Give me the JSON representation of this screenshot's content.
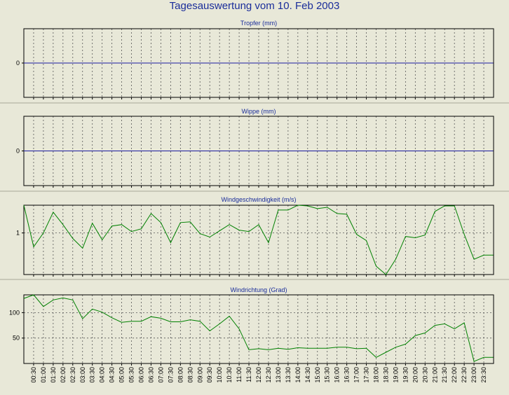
{
  "page_title": "Tagesauswertung vom 10. Feb 2003",
  "x_ticks": [
    "00:30",
    "01:00",
    "01:30",
    "02:00",
    "02:30",
    "03:00",
    "03:30",
    "04:00",
    "04:30",
    "05:00",
    "05:30",
    "06:00",
    "06:30",
    "07:00",
    "07:30",
    "08:00",
    "08:30",
    "09:00",
    "09:30",
    "10:00",
    "10:30",
    "11:00",
    "11:30",
    "12:00",
    "12:30",
    "13:00",
    "13:30",
    "14:00",
    "14:30",
    "15:00",
    "15:30",
    "16:00",
    "16:30",
    "17:00",
    "17:30",
    "18:00",
    "18:30",
    "19:00",
    "19:30",
    "20:00",
    "20:30",
    "21:00",
    "21:30",
    "22:00",
    "22:30",
    "23:00",
    "23:30"
  ],
  "chart_data": [
    {
      "type": "line",
      "title": "Tropfer (mm)",
      "x": [
        "00:00",
        "23:59"
      ],
      "ylim": [
        -1,
        1
      ],
      "yticks": [
        0
      ],
      "grid": true,
      "series": [
        {
          "color": "#1a1aa0",
          "values": [
            0,
            0
          ]
        }
      ]
    },
    {
      "type": "line",
      "title": "Wippe (mm)",
      "x": [
        "00:00",
        "23:59"
      ],
      "ylim": [
        -1,
        1
      ],
      "yticks": [
        0
      ],
      "grid": true,
      "series": [
        {
          "color": "#1a1aa0",
          "values": [
            0,
            0
          ]
        }
      ]
    },
    {
      "type": "line",
      "title": "Windgeschwindigkeit (m/s)",
      "x": [
        "00:00",
        "00:30",
        "01:00",
        "01:30",
        "02:00",
        "02:30",
        "03:00",
        "03:30",
        "04:00",
        "04:30",
        "05:00",
        "05:30",
        "06:00",
        "06:30",
        "07:00",
        "07:30",
        "08:00",
        "08:30",
        "09:00",
        "09:30",
        "10:00",
        "10:30",
        "11:00",
        "11:30",
        "12:00",
        "12:30",
        "13:00",
        "13:30",
        "14:00",
        "14:30",
        "15:00",
        "15:30",
        "16:00",
        "16:30",
        "17:00",
        "17:30",
        "18:00",
        "18:30",
        "19:00",
        "19:30",
        "20:00",
        "20:30",
        "21:00",
        "21:30",
        "22:00",
        "22:30",
        "23:00",
        "23:30",
        "23:59"
      ],
      "ylim": [
        0.4,
        1.4
      ],
      "yticks": [
        1
      ],
      "grid": true,
      "series": [
        {
          "color": "#008000",
          "values": [
            1.4,
            0.8,
            1.0,
            1.3,
            1.12,
            0.92,
            0.78,
            1.14,
            0.9,
            1.1,
            1.12,
            1.02,
            1.06,
            1.28,
            1.15,
            0.86,
            1.15,
            1.16,
            0.99,
            0.94,
            1.03,
            1.12,
            1.04,
            1.02,
            1.12,
            0.86,
            1.33,
            1.33,
            1.4,
            1.39,
            1.35,
            1.37,
            1.28,
            1.27,
            0.98,
            0.89,
            0.52,
            0.4,
            0.62,
            0.95,
            0.93,
            0.97,
            1.31,
            1.39,
            1.39,
            0.98,
            0.62,
            0.68,
            0.68
          ]
        }
      ]
    },
    {
      "type": "line",
      "title": "Windrichtung (Grad)",
      "x": [
        "00:00",
        "00:30",
        "01:00",
        "01:30",
        "02:00",
        "02:30",
        "03:00",
        "03:30",
        "04:00",
        "04:30",
        "05:00",
        "05:30",
        "06:00",
        "06:30",
        "07:00",
        "07:30",
        "08:00",
        "08:30",
        "09:00",
        "09:30",
        "10:00",
        "10:30",
        "11:00",
        "11:30",
        "12:00",
        "12:30",
        "13:00",
        "13:30",
        "14:00",
        "14:30",
        "15:00",
        "15:30",
        "16:00",
        "16:30",
        "17:00",
        "17:30",
        "18:00",
        "18:30",
        "19:00",
        "19:30",
        "20:00",
        "20:30",
        "21:00",
        "21:30",
        "22:00",
        "22:30",
        "23:00",
        "23:30",
        "23:59"
      ],
      "ylim": [
        0,
        135
      ],
      "yticks": [
        50,
        100
      ],
      "grid": true,
      "series": [
        {
          "color": "#008000",
          "values": [
            128,
            135,
            112,
            125,
            129,
            125,
            88,
            107,
            101,
            90,
            81,
            83,
            83,
            92,
            89,
            82,
            82,
            86,
            83,
            64,
            78,
            93,
            68,
            27,
            29,
            27,
            30,
            28,
            31,
            30,
            30,
            30,
            32,
            32,
            29,
            30,
            12,
            22,
            32,
            38,
            55,
            60,
            75,
            78,
            68,
            80,
            4,
            12,
            12
          ]
        }
      ]
    }
  ]
}
